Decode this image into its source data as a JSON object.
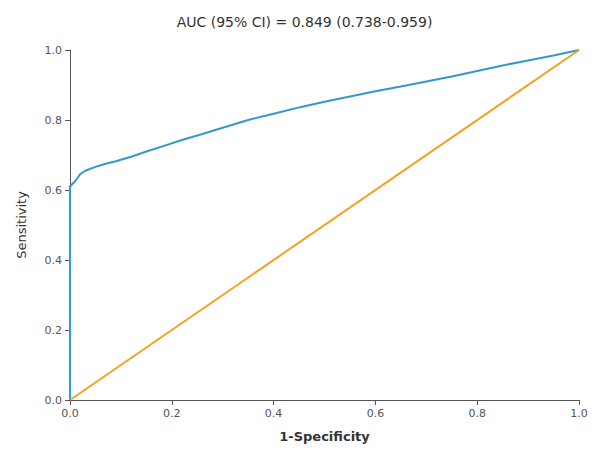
{
  "chart_data": {
    "type": "line",
    "title": "AUC (95% CI) = 0.849 (0.738-0.959)",
    "xlabel": "1-Specificity",
    "ylabel": "Sensitivity",
    "series": [
      {
        "color": "#3399cc",
        "x": [
          0.0,
          0.0,
          0.01,
          0.02,
          0.03,
          0.05,
          0.07,
          0.09,
          0.12,
          0.15,
          0.18,
          0.22,
          0.26,
          0.3,
          0.35,
          0.4,
          0.45,
          0.5,
          0.55,
          0.6,
          0.65,
          0.7,
          0.75,
          0.8,
          0.85,
          0.9,
          0.95,
          1.0
        ],
        "values": [
          0.0,
          0.61,
          0.625,
          0.645,
          0.655,
          0.666,
          0.675,
          0.682,
          0.695,
          0.71,
          0.724,
          0.743,
          0.76,
          0.778,
          0.8,
          0.818,
          0.836,
          0.852,
          0.867,
          0.882,
          0.896,
          0.91,
          0.924,
          0.94,
          0.956,
          0.97,
          0.984,
          1.0
        ]
      },
      {
        "color": "#f5a020",
        "x": [
          0,
          1
        ],
        "values": [
          0,
          1
        ]
      }
    ],
    "xlim": [
      0.0,
      1.0
    ],
    "ylim": [
      0.0,
      1.0
    ],
    "xticks": [
      {
        "value": 0,
        "label": "0.0"
      },
      0.2,
      0.4,
      0.6,
      0.8,
      {
        "value": 1,
        "label": "1.0"
      }
    ],
    "yticks": [
      {
        "value": 0,
        "label": "0.0"
      },
      0.2,
      0.4,
      0.6,
      0.8,
      {
        "value": 1,
        "label": "1.0"
      }
    ],
    "grid": false
  }
}
